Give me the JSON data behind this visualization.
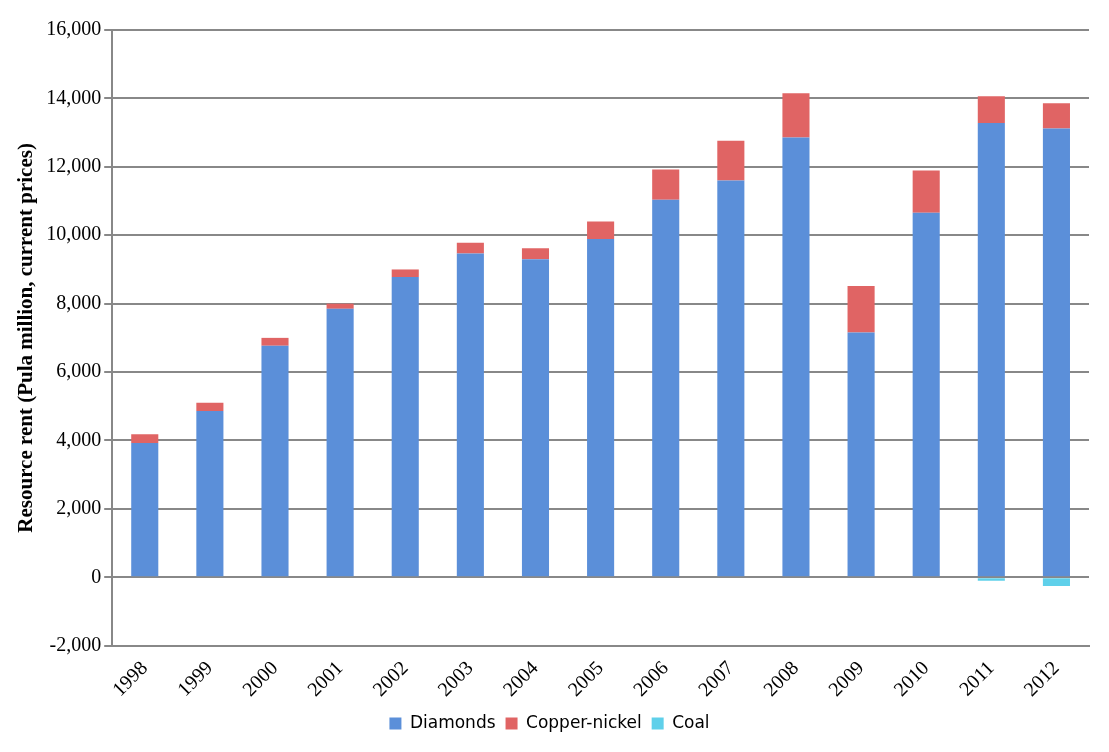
{
  "chart_data": {
    "type": "bar",
    "stacked": true,
    "ylabel": "Resource rent (Pula million, current prices)",
    "categories": [
      "1998",
      "1999",
      "2000",
      "2001",
      "2002",
      "2003",
      "2004",
      "2005",
      "2006",
      "2007",
      "2008",
      "2009",
      "2010",
      "2011",
      "2012"
    ],
    "series": [
      {
        "name": "Diamonds",
        "color": "#5b8fd9",
        "values": [
          3930,
          4860,
          6770,
          7850,
          8780,
          9470,
          9300,
          9890,
          11040,
          11600,
          12860,
          7160,
          10660,
          13280,
          13120
        ]
      },
      {
        "name": "Copper-nickel",
        "color": "#e06464",
        "values": [
          250,
          240,
          230,
          150,
          220,
          310,
          320,
          510,
          880,
          1160,
          1290,
          1360,
          1230,
          780,
          740
        ]
      },
      {
        "name": "Coal",
        "color": "#5fd0ea",
        "values": [
          0,
          0,
          0,
          0,
          0,
          0,
          0,
          0,
          0,
          0,
          0,
          0,
          0,
          -100,
          -250
        ]
      }
    ],
    "ylim": [
      -2000,
      16000
    ],
    "yticks": [
      {
        "value": -2000,
        "label": "-2,000"
      },
      0,
      {
        "value": 2000,
        "label": "2,000"
      },
      {
        "value": 4000,
        "label": "4,000"
      },
      {
        "value": 6000,
        "label": "6,000"
      },
      {
        "value": 8000,
        "label": "8,000"
      },
      {
        "value": 10000,
        "label": "10,000"
      },
      {
        "value": 12000,
        "label": "12,000"
      },
      {
        "value": 14000,
        "label": "14,000"
      },
      {
        "value": 16000,
        "label": "16,000"
      }
    ],
    "grid": "y",
    "legend": "bottom"
  }
}
